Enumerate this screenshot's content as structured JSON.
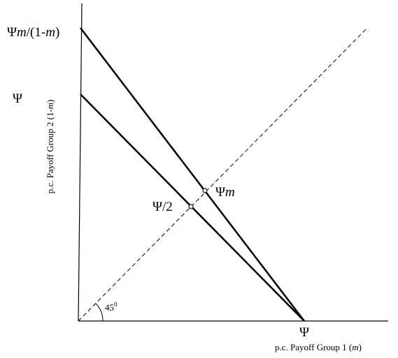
{
  "labels": {
    "y_intercept_high": [
      "Ψ",
      "m",
      "/(1-",
      "m",
      ")"
    ],
    "y_intercept_low": "Ψ",
    "midpoint_low": "Ψ/2",
    "midpoint_high": [
      "Ψ",
      "m"
    ],
    "x_intercept": "Ψ",
    "angle": [
      "45",
      "0"
    ],
    "x_axis_title": [
      "p.c. Payoff Group 1 (",
      "m",
      ")"
    ],
    "y_axis_title": [
      "p.c. Payoff Group 2 (1-",
      "m",
      ")"
    ]
  }
}
